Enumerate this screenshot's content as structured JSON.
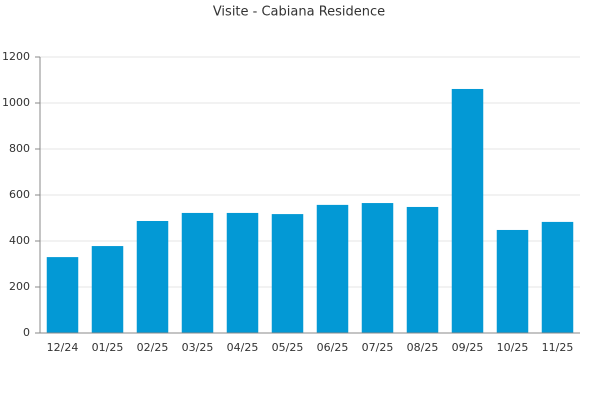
{
  "chart_data": {
    "type": "bar",
    "title": "Visite - Cabiana Residence",
    "categories": [
      "12/24",
      "01/25",
      "02/25",
      "03/25",
      "04/25",
      "05/25",
      "06/25",
      "07/25",
      "08/25",
      "09/25",
      "10/25",
      "11/25"
    ],
    "values": [
      330,
      378,
      487,
      522,
      522,
      517,
      557,
      565,
      548,
      1061,
      448,
      483
    ],
    "color": "#0399d5",
    "ylim": [
      0,
      1200
    ],
    "yticks": [
      0,
      200,
      400,
      600,
      800,
      1000,
      1200
    ],
    "grid": true
  }
}
